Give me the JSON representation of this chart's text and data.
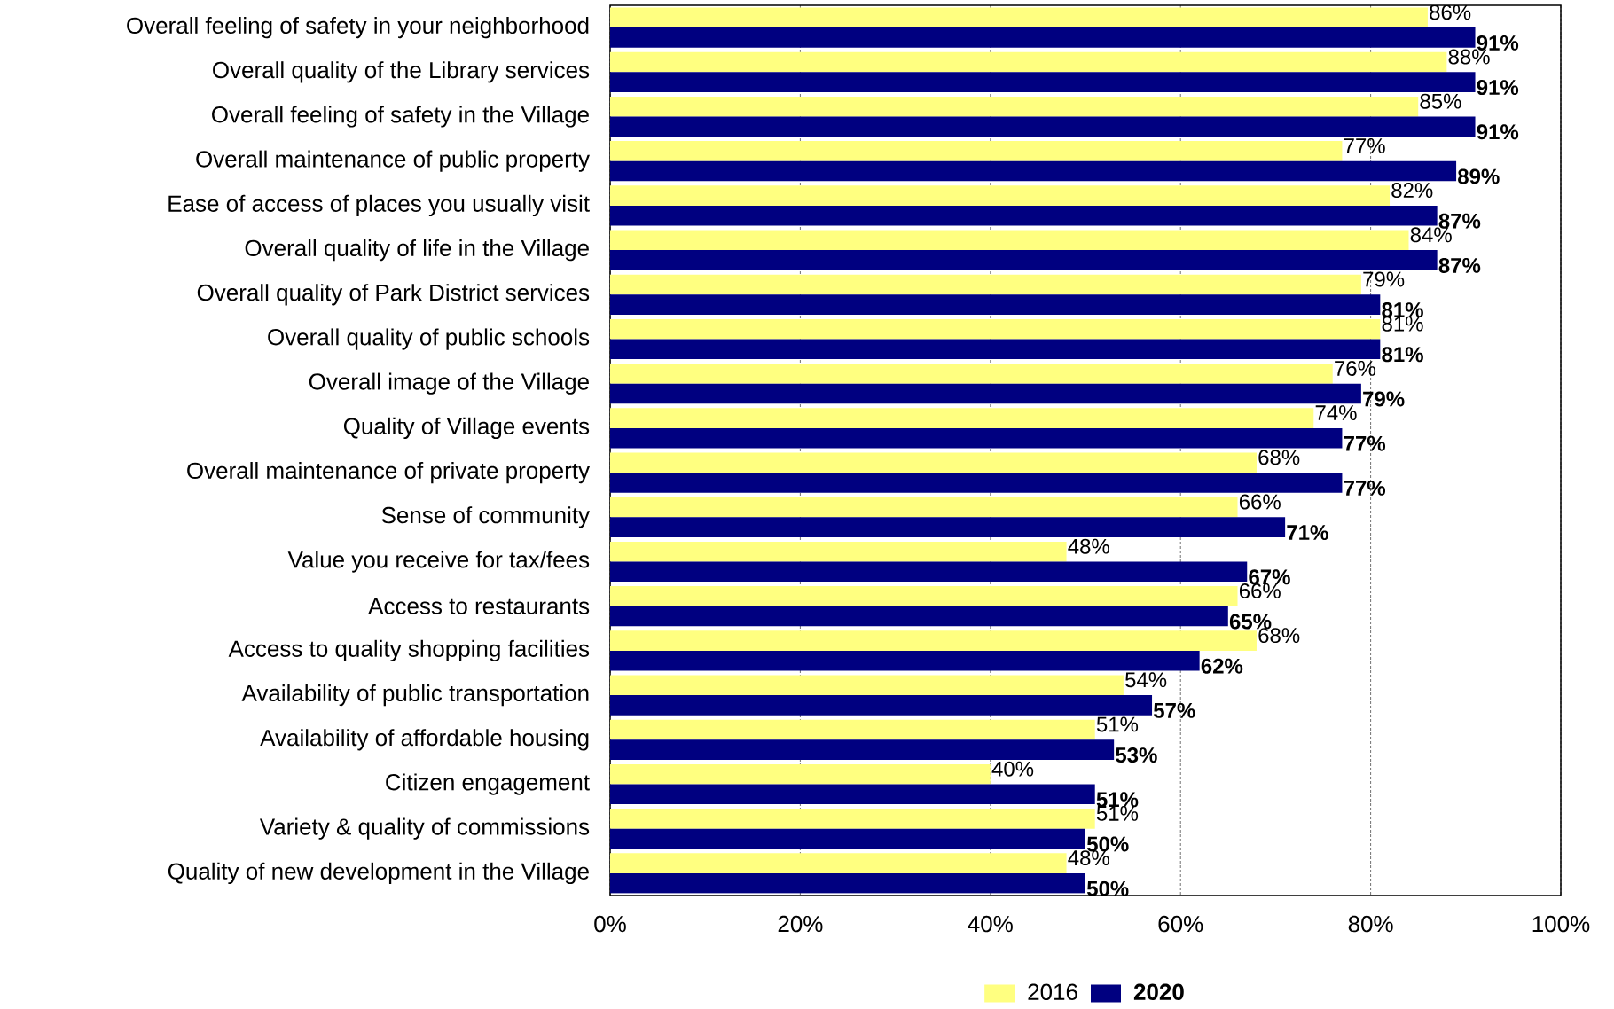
{
  "chart_data": {
    "type": "bar",
    "orientation": "horizontal",
    "categories": [
      "Overall feeling of safety in your neighborhood",
      "Overall quality of the Library services",
      "Overall feeling of safety in the Village",
      "Overall maintenance of public property",
      "Ease of access of places you usually visit",
      "Overall quality of life in the Village",
      "Overall quality of Park District services",
      "Overall quality of public schools",
      "Overall image of the Village",
      "Quality of Village events",
      "Overall maintenance of private property",
      "Sense of community",
      "Value you receive for tax/fees",
      "Access to restaurants",
      "Access to quality shopping facilities",
      "Availability of public transportation",
      "Availability of affordable housing",
      "Citizen engagement",
      "Variety & quality of commissions",
      "Quality of new development in the Village"
    ],
    "series": [
      {
        "name": "2016",
        "color": "#ffff80",
        "values": [
          86,
          88,
          85,
          77,
          82,
          84,
          79,
          81,
          76,
          74,
          68,
          66,
          48,
          66,
          68,
          54,
          51,
          40,
          51,
          48
        ],
        "value_labels": [
          "86%",
          "88%",
          "85%",
          "77%",
          "82%",
          "84%",
          "79%",
          "81%",
          "76%",
          "74%",
          "68%",
          "66%",
          "48%",
          "66%",
          "68%",
          "54%",
          "51%",
          "40%",
          "51%",
          "48%"
        ]
      },
      {
        "name": "2020",
        "color": "#000080",
        "values": [
          91,
          91,
          91,
          89,
          87,
          87,
          81,
          81,
          79,
          77,
          77,
          71,
          67,
          65,
          62,
          57,
          53,
          51,
          50,
          50
        ],
        "value_labels": [
          "91%",
          "91%",
          "91%",
          "89%",
          "87%",
          "87%",
          "81%",
          "81%",
          "79%",
          "77%",
          "77%",
          "71%",
          "67%",
          "65%",
          "62%",
          "57%",
          "53%",
          "51%",
          "50%",
          "50%"
        ]
      }
    ],
    "xlim": [
      0,
      100
    ],
    "xticks": [
      {
        "value": 0,
        "label": "0%"
      },
      {
        "value": 20,
        "label": "20%"
      },
      {
        "value": 40,
        "label": "40%"
      },
      {
        "value": 60,
        "label": "60%"
      },
      {
        "value": 80,
        "label": "80%"
      },
      {
        "value": 100,
        "label": "100%"
      }
    ],
    "grid": "x",
    "legend": "bottom"
  }
}
